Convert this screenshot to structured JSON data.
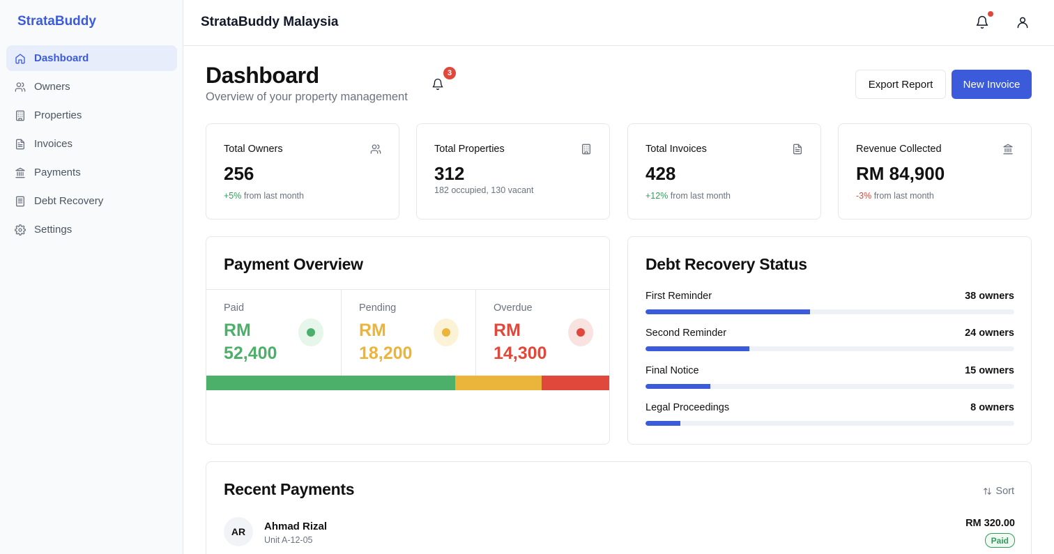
{
  "sidebar": {
    "brand": "StrataBuddy",
    "items": [
      {
        "label": "Dashboard",
        "icon": "home-icon",
        "active": true
      },
      {
        "label": "Owners",
        "icon": "users-icon"
      },
      {
        "label": "Properties",
        "icon": "building-icon"
      },
      {
        "label": "Invoices",
        "icon": "file-icon"
      },
      {
        "label": "Payments",
        "icon": "bank-icon"
      },
      {
        "label": "Debt Recovery",
        "icon": "document-list-icon"
      },
      {
        "label": "Settings",
        "icon": "gear-icon"
      }
    ]
  },
  "header": {
    "title": "StrataBuddy Malaysia",
    "notification_icon": "bell-icon",
    "profile_icon": "user-icon"
  },
  "page": {
    "title": "Dashboard",
    "subtitle": "Overview of your property management",
    "notification_count": "3",
    "export_label": "Export Report",
    "new_invoice_label": "New Invoice"
  },
  "stats": [
    {
      "label": "Total Owners",
      "icon": "users-icon",
      "value": "256",
      "change": "+5%",
      "change_text": " from last month",
      "trend": "up"
    },
    {
      "label": "Total Properties",
      "icon": "building-icon",
      "value": "312",
      "note": "182 occupied, 130 vacant"
    },
    {
      "label": "Total Invoices",
      "icon": "file-icon",
      "value": "428",
      "change": "+12%",
      "change_text": " from last month",
      "trend": "up"
    },
    {
      "label": "Revenue Collected",
      "icon": "bank-icon",
      "value": "RM 84,900",
      "change": "-3%",
      "change_text": " from last month",
      "trend": "down"
    }
  ],
  "payment_overview": {
    "title": "Payment Overview",
    "columns": [
      {
        "label": "Paid",
        "amount": "RM 52,400",
        "value": 52400,
        "color": "#4caf6a",
        "tint": "#e6f6ea"
      },
      {
        "label": "Pending",
        "amount": "RM 18,200",
        "value": 18200,
        "color": "#ebb43a",
        "tint": "#fcf3d6"
      },
      {
        "label": "Overdue",
        "amount": "RM 14,300",
        "value": 14300,
        "color": "#e0483b",
        "tint": "#f9e3e1"
      }
    ]
  },
  "debt_recovery": {
    "title": "Debt Recovery Status",
    "max_owners": 85,
    "stages": [
      {
        "name": "First Reminder",
        "count_label": "38 owners",
        "count": 38
      },
      {
        "name": "Second Reminder",
        "count_label": "24 owners",
        "count": 24
      },
      {
        "name": "Final Notice",
        "count_label": "15 owners",
        "count": 15
      },
      {
        "name": "Legal Proceedings",
        "count_label": "8 owners",
        "count": 8
      }
    ]
  },
  "recent_payments": {
    "title": "Recent Payments",
    "sort_label": "Sort",
    "rows": [
      {
        "initials": "AR",
        "name": "Ahmad Rizal",
        "unit": "Unit A-12-05",
        "amount": "RM 320.00",
        "status": "Paid"
      }
    ]
  }
}
